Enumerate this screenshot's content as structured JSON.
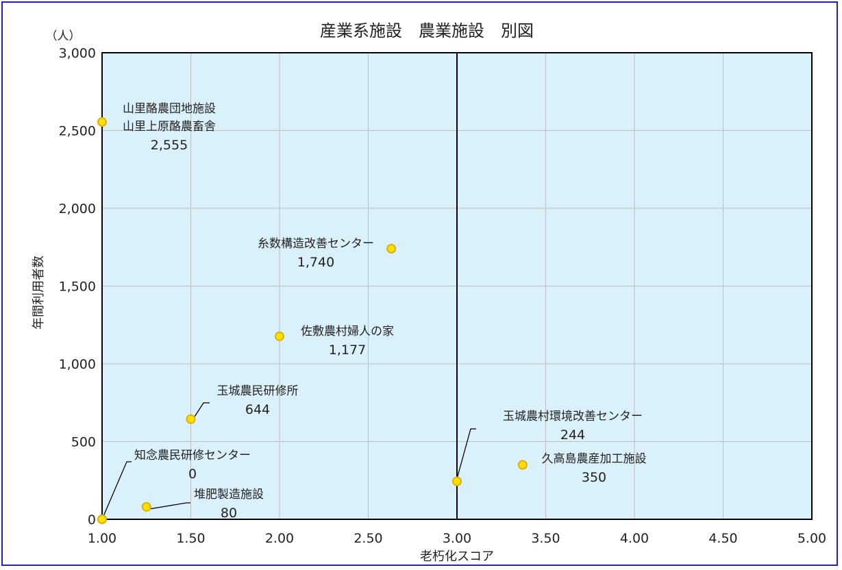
{
  "chart_data": {
    "type": "scatter",
    "title": "産業系施設　農業施設　別図",
    "xlabel": "老朽化スコア",
    "ylabel": "年間利用者数",
    "yunit": "（人）",
    "xlim": [
      1.0,
      5.0
    ],
    "ylim": [
      0,
      3000
    ],
    "xticks": [
      "1.00",
      "1.50",
      "2.00",
      "2.50",
      "3.00",
      "3.50",
      "4.00",
      "4.50",
      "5.00"
    ],
    "yticks": [
      "0",
      "500",
      "1,000",
      "1,500",
      "2,000",
      "2,500",
      "3,000"
    ],
    "grid": true,
    "reference_line_x": 3.0,
    "colors": {
      "plot_bg": "#daf1fb",
      "marker_fill": "#ffe000",
      "marker_edge": "#e0b000",
      "frame": "#1f1fbf",
      "grid": "#bfbfbf"
    },
    "points": [
      {
        "x": 1.0,
        "y": 2555,
        "lines": [
          "山里酪農団地施設",
          "山里上原酪農畜舎"
        ],
        "value_label": "2,555"
      },
      {
        "x": 2.63,
        "y": 1740,
        "lines": [
          "糸数構造改善センター"
        ],
        "value_label": "1,740"
      },
      {
        "x": 2.0,
        "y": 1177,
        "lines": [
          "佐敷農村婦人の家"
        ],
        "value_label": "1,177"
      },
      {
        "x": 1.5,
        "y": 644,
        "lines": [
          "玉城農民研修所"
        ],
        "value_label": "644"
      },
      {
        "x": 1.0,
        "y": 0,
        "lines": [
          "知念農民研修センター"
        ],
        "value_label": "0"
      },
      {
        "x": 1.25,
        "y": 80,
        "lines": [
          "堆肥製造施設"
        ],
        "value_label": "80"
      },
      {
        "x": 3.0,
        "y": 244,
        "lines": [
          "玉城農村環境改善センター"
        ],
        "value_label": "244"
      },
      {
        "x": 3.37,
        "y": 350,
        "lines": [
          "久高島農産加工施設"
        ],
        "value_label": "350"
      }
    ]
  }
}
